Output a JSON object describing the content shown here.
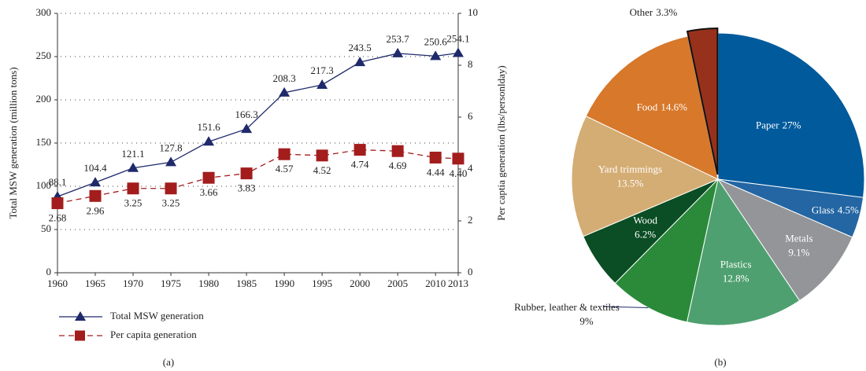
{
  "chart_data": [
    {
      "type": "line",
      "caption": "(a)",
      "y_label": "Total MSW generation (million tons)",
      "y2_label": "Per captia generation (lbs/personlday)",
      "x": [
        1960,
        1965,
        1970,
        1975,
        1980,
        1985,
        1990,
        1995,
        2000,
        2005,
        2010,
        2013
      ],
      "xlim": [
        1960,
        2013
      ],
      "xticks": [
        1960,
        1965,
        1970,
        1975,
        1980,
        1985,
        1990,
        1995,
        2000,
        2005,
        2010,
        2013
      ],
      "ylim": [
        0,
        300
      ],
      "yticks": [
        0,
        50,
        100,
        150,
        200,
        250,
        300
      ],
      "y2lim": [
        0,
        10
      ],
      "y2ticks": [
        0,
        2,
        4,
        6,
        8,
        10
      ],
      "grid": true,
      "series": [
        {
          "name": "Total MSW generation",
          "color": "#1f2a6b",
          "marker": "triangle",
          "values": [
            88.1,
            104.4,
            121.1,
            127.8,
            151.6,
            166.3,
            208.3,
            217.3,
            243.5,
            253.7,
            250.6,
            254.1
          ]
        },
        {
          "name": "Per capita generation",
          "color": "#a31d1d",
          "marker": "square",
          "axis": "y2",
          "dashed": true,
          "values": [
            2.68,
            2.96,
            3.25,
            3.25,
            3.66,
            3.83,
            4.57,
            4.52,
            4.74,
            4.69,
            4.44,
            4.4
          ],
          "value_labels": [
            "2.68",
            "2.96",
            "3.25",
            "3.25",
            "3.66",
            "3.83",
            "4.57",
            "4.52",
            "4.74",
            "4.69",
            "4.44",
            "4.40"
          ]
        }
      ]
    },
    {
      "type": "pie",
      "caption": "(b)",
      "categories": [
        "Paper",
        "Glass",
        "Metals",
        "Plastics",
        "Rubber, leather & textiles",
        "Wood",
        "Yard trimmings",
        "Food",
        "Other"
      ],
      "values": [
        27,
        4.5,
        9.1,
        12.8,
        9,
        6.2,
        13.5,
        14.6,
        3.3
      ],
      "value_labels": [
        "27%",
        "4.5%",
        "9.1%",
        "12.8%",
        "9%",
        "6.2%",
        "13.5%",
        "14.6%",
        "3.3%"
      ],
      "colors": [
        "#005a9c",
        "#2366a3",
        "#939598",
        "#4fa070",
        "#2a8a3a",
        "#0b4d24",
        "#d4ad74",
        "#d7782b",
        "#98311c"
      ]
    }
  ]
}
